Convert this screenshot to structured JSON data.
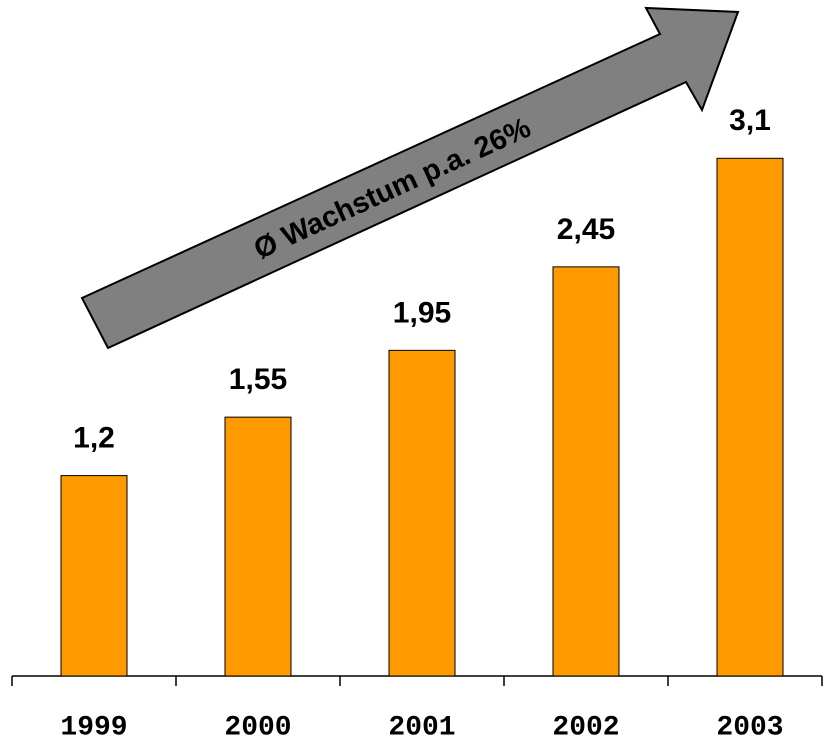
{
  "chart_data": {
    "type": "bar",
    "annotation": "Ø Wachstum p.a. 26%",
    "categories": [
      "1999",
      "2000",
      "2001",
      "2002",
      "2003"
    ],
    "values": [
      1.2,
      1.55,
      1.95,
      2.45,
      3.1
    ],
    "value_labels": [
      "1,2",
      "1,55",
      "1,95",
      "2,45",
      "3,1"
    ],
    "color": "#ff9900",
    "ylim": [
      0,
      4
    ]
  }
}
